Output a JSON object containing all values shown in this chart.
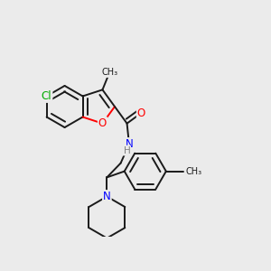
{
  "bg_color": "#ebebeb",
  "bond_color": "#1a1a1a",
  "bond_width": 1.4,
  "atom_colors": {
    "O": "#ff0000",
    "N": "#0000ff",
    "Cl": "#00aa00",
    "H": "#808080",
    "C": "#1a1a1a"
  },
  "font_size": 8.5,
  "figsize": [
    3.0,
    3.0
  ],
  "dpi": 100
}
